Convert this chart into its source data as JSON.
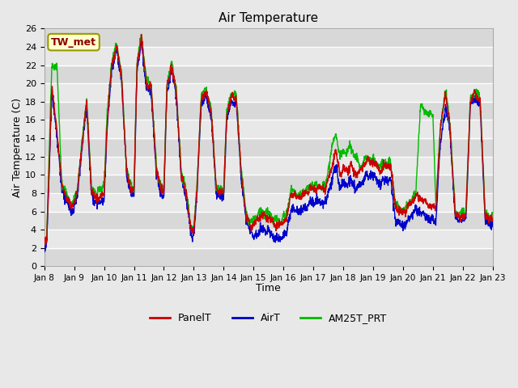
{
  "title": "Air Temperature",
  "xlabel": "Time",
  "ylabel": "Air Temperature (C)",
  "annotation": "TW_met",
  "ylim": [
    0,
    26
  ],
  "yticks": [
    0,
    2,
    4,
    6,
    8,
    10,
    12,
    14,
    16,
    18,
    20,
    22,
    24,
    26
  ],
  "date_labels": [
    "Jan 8",
    "Jan 9",
    "Jan 10",
    "Jan 11",
    "Jan 12",
    "Jan 13",
    "Jan 14",
    "Jan 15",
    "Jan 16",
    "Jan 17",
    "Jan 18",
    "Jan 19",
    "Jan 20",
    "Jan 21",
    "Jan 22",
    "Jan 23"
  ],
  "colors": {
    "PanelT": "#cc0000",
    "AirT": "#0000cc",
    "AM25T_PRT": "#00bb00"
  },
  "bg_color": "#e8e8e8",
  "grid_color": "#ffffff",
  "line_width": 1.0,
  "panel_key_x": [
    0.0,
    0.08,
    0.25,
    0.42,
    0.58,
    0.75,
    0.9,
    1.0,
    1.1,
    1.25,
    1.42,
    1.58,
    1.75,
    1.9,
    2.0,
    2.1,
    2.25,
    2.42,
    2.58,
    2.75,
    2.9,
    3.0,
    3.1,
    3.25,
    3.42,
    3.58,
    3.75,
    3.9,
    4.0,
    4.1,
    4.25,
    4.42,
    4.58,
    4.75,
    4.9,
    5.0,
    5.1,
    5.25,
    5.42,
    5.58,
    5.75,
    5.9,
    6.0,
    6.1,
    6.25,
    6.42,
    6.58,
    6.75,
    6.9,
    7.0,
    7.1,
    7.25,
    7.42,
    7.58,
    7.75,
    7.9,
    8.0,
    8.1,
    8.25,
    8.42,
    8.58,
    8.75,
    8.9,
    9.0,
    9.1,
    9.25,
    9.42,
    9.58,
    9.75,
    9.9,
    10.0,
    10.1,
    10.25,
    10.42,
    10.58,
    10.75,
    10.9,
    11.0,
    11.1,
    11.25,
    11.42,
    11.58,
    11.75,
    11.9,
    12.0,
    12.1,
    12.25,
    12.42,
    12.58,
    12.75,
    12.9,
    13.0,
    13.1,
    13.25,
    13.42,
    13.58,
    13.75,
    13.9,
    14.0,
    14.1,
    14.25,
    14.42,
    14.58,
    14.75,
    14.9,
    15.0
  ],
  "panel_key_y": [
    2.5,
    3.0,
    19.5,
    15.0,
    9.0,
    7.5,
    6.5,
    7.0,
    8.0,
    13.0,
    18.0,
    8.0,
    7.5,
    7.5,
    8.0,
    15.5,
    22.0,
    24.0,
    21.0,
    10.5,
    8.5,
    8.0,
    22.0,
    25.0,
    20.0,
    19.5,
    10.5,
    8.5,
    8.0,
    19.5,
    22.0,
    19.0,
    10.0,
    8.0,
    4.0,
    4.0,
    8.0,
    18.5,
    19.0,
    17.0,
    8.5,
    8.0,
    8.0,
    16.5,
    18.5,
    18.5,
    10.5,
    5.5,
    4.5,
    4.5,
    5.0,
    5.5,
    5.5,
    5.0,
    4.5,
    4.5,
    5.0,
    5.0,
    8.0,
    7.5,
    7.5,
    8.0,
    8.5,
    8.5,
    8.5,
    8.5,
    8.5,
    10.5,
    12.5,
    10.0,
    10.5,
    10.5,
    11.0,
    10.0,
    10.5,
    11.5,
    11.5,
    11.5,
    11.0,
    10.5,
    11.0,
    11.0,
    6.5,
    6.0,
    6.0,
    6.0,
    7.0,
    7.5,
    7.5,
    7.0,
    6.5,
    6.5,
    6.5,
    15.0,
    19.0,
    15.0,
    5.5,
    5.5,
    5.5,
    5.5,
    18.0,
    19.0,
    18.0,
    5.5,
    5.0,
    5.5
  ]
}
